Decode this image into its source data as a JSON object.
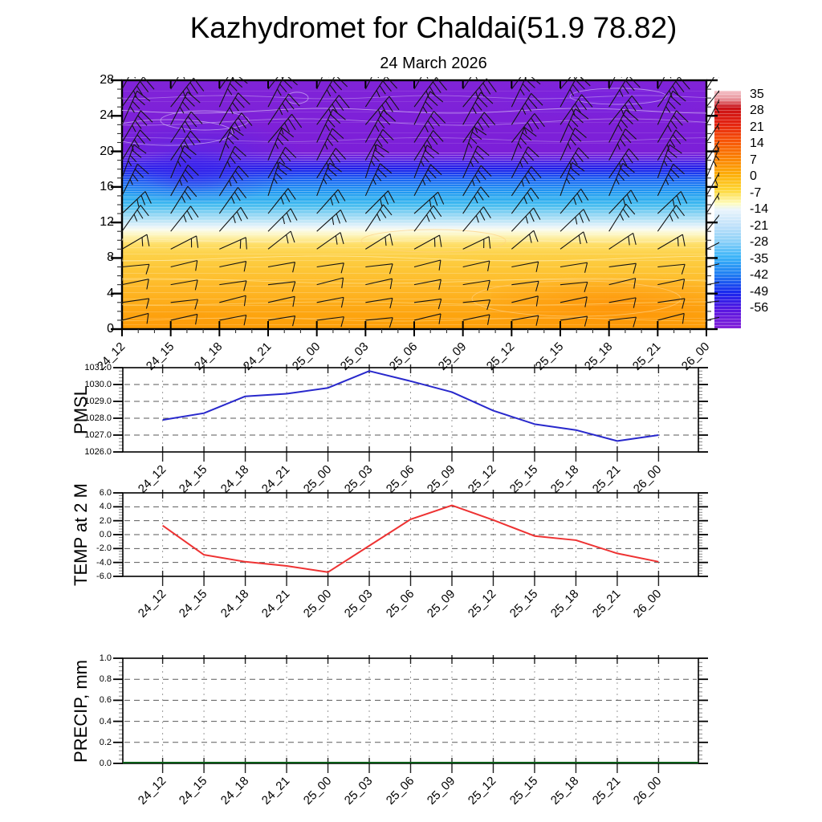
{
  "title": "Kazhydromet for Chaldai(51.9 78.82)",
  "subtitle": "24 March 2026",
  "time_labels": [
    "24_12",
    "24_15",
    "24_18",
    "24_21",
    "25_00",
    "25_03",
    "25_06",
    "25_09",
    "25_12",
    "25_15",
    "25_18",
    "25_21",
    "26_00"
  ],
  "colorbar": {
    "tick_labels": [
      "35",
      "28",
      "21",
      "14",
      "7",
      "0",
      "-7",
      "-14",
      "-21",
      "-28",
      "-35",
      "-42",
      "-49",
      "-56"
    ]
  },
  "cross_section": {
    "y_tick_labels": [
      "28",
      "24",
      "20",
      "16",
      "12",
      "8",
      "4",
      "0"
    ],
    "y_range_km": [
      0,
      28
    ],
    "overlay": "wind barbs at each 3 h time step, every 2 km height"
  },
  "pmsl": {
    "axis_label": "PMSL",
    "y_tick_labels": [
      "1031.0",
      "1030.0",
      "1029.0",
      "1028.0",
      "1027.0",
      "1026.0"
    ]
  },
  "temp": {
    "axis_label": "TEMP at 2 M",
    "y_tick_labels": [
      "6.0",
      "4.0",
      "2.0",
      "0.0",
      "-2.0",
      "-4.0",
      "-6.0"
    ]
  },
  "precip": {
    "axis_label": "PRECIP, mm",
    "y_tick_labels": [
      "1.0",
      "0.8",
      "0.6",
      "0.4",
      "0.2",
      "0.0"
    ]
  },
  "colors": {
    "pmsl_line": "#2828cc",
    "temp_line": "#ee3232",
    "precip_line": "#0b5e18",
    "grid_h": "#5a5a5a",
    "grid_v": "#9a9a9a",
    "cross_section_gradient": [
      [
        0.0,
        "#8023d8"
      ],
      [
        0.29,
        "#7c1fd8"
      ],
      [
        0.315,
        "#6325e2"
      ],
      [
        0.335,
        "#3c25e6"
      ],
      [
        0.355,
        "#1c1ce8"
      ],
      [
        0.375,
        "#1a3cee"
      ],
      [
        0.4,
        "#1c66f2"
      ],
      [
        0.435,
        "#1f8ef2"
      ],
      [
        0.47,
        "#27a8f0"
      ],
      [
        0.5,
        "#46bcf0"
      ],
      [
        0.53,
        "#7fd0f2"
      ],
      [
        0.56,
        "#b5e2f6"
      ],
      [
        0.585,
        "#e2f2fa"
      ],
      [
        0.6,
        "#f8fbee"
      ],
      [
        0.615,
        "#fdf8cd"
      ],
      [
        0.635,
        "#fdeea0"
      ],
      [
        0.66,
        "#fede67"
      ],
      [
        0.7,
        "#fdd148"
      ],
      [
        0.76,
        "#fdc636"
      ],
      [
        0.84,
        "#feb726"
      ],
      [
        0.92,
        "#fda814"
      ],
      [
        1.0,
        "#fd9d06"
      ]
    ],
    "colorbar_gradient": [
      [
        0.0,
        "#f5c2c9"
      ],
      [
        0.035,
        "#e8959c"
      ],
      [
        0.07,
        "#c91016"
      ],
      [
        0.14,
        "#e42310"
      ],
      [
        0.21,
        "#f75408"
      ],
      [
        0.285,
        "#fb8304"
      ],
      [
        0.355,
        "#fdb009"
      ],
      [
        0.42,
        "#fed839"
      ],
      [
        0.475,
        "#fefcc0"
      ],
      [
        0.5,
        "#eaf5fc"
      ],
      [
        0.565,
        "#c2e2fa"
      ],
      [
        0.63,
        "#90d2f8"
      ],
      [
        0.7,
        "#3ab4f8"
      ],
      [
        0.775,
        "#1e7cf2"
      ],
      [
        0.85,
        "#1826ee"
      ],
      [
        0.925,
        "#5a16e0"
      ],
      [
        1.0,
        "#8523d8"
      ]
    ]
  },
  "chart_data": [
    {
      "type": "heatmap",
      "name": "temperature vertical cross-section with wind barbs",
      "x": [
        "24_12",
        "24_15",
        "24_18",
        "24_21",
        "25_00",
        "25_03",
        "25_06",
        "25_09",
        "25_12",
        "25_15",
        "25_18",
        "25_21",
        "26_00"
      ],
      "ylim": [
        0,
        28
      ],
      "yticks": [
        0,
        4,
        8,
        12,
        16,
        20,
        24,
        28
      ],
      "colorbar_values": [
        35,
        28,
        21,
        14,
        7,
        0,
        -7,
        -14,
        -21,
        -28,
        -35,
        -42,
        -49,
        -56
      ],
      "field_bands": [
        {
          "height_km": [
            19,
            28
          ],
          "approx_value": "-56 and colder",
          "color_name": "purple"
        },
        {
          "height_km": [
            16.5,
            19
          ],
          "approx_value": "-49 to -56",
          "color_name": "dark blue"
        },
        {
          "height_km": [
            12.8,
            16.5
          ],
          "approx_value": "-28 to -49",
          "color_name": "cyan"
        },
        {
          "height_km": [
            10.5,
            12.8
          ],
          "approx_value": "-14 to -28",
          "color_name": "pale blue / white"
        },
        {
          "height_km": [
            6,
            10.5
          ],
          "approx_value": "-7 to -14",
          "color_name": "yellow"
        },
        {
          "height_km": [
            0,
            6
          ],
          "approx_value": "0 to -7",
          "color_name": "orange"
        }
      ],
      "overlay": "wind barbs every 3 h in 13 columns, every 2 km in height"
    },
    {
      "type": "line",
      "name": "PMSL",
      "x": [
        "24_12",
        "24_15",
        "24_18",
        "24_21",
        "25_00",
        "25_03",
        "25_06",
        "25_09",
        "25_12",
        "25_15",
        "25_18",
        "25_21",
        "26_00"
      ],
      "values": [
        1027.9,
        1028.3,
        1029.3,
        1029.45,
        1029.8,
        1030.8,
        1030.2,
        1029.55,
        1028.45,
        1027.65,
        1027.3,
        1026.65,
        1027.0
      ],
      "ylim": [
        1026.0,
        1031.0
      ],
      "line_color": "#2828cc"
    },
    {
      "type": "line",
      "name": "TEMP at 2 M",
      "x": [
        "24_12",
        "24_15",
        "24_18",
        "24_21",
        "25_00",
        "25_03",
        "25_06",
        "25_09",
        "25_12",
        "25_15",
        "25_18",
        "25_21",
        "26_00"
      ],
      "values": [
        1.3,
        -2.9,
        -3.9,
        -4.5,
        -5.4,
        -1.6,
        2.2,
        4.2,
        2.1,
        -0.2,
        -0.8,
        -2.7,
        -3.9
      ],
      "ylim": [
        -6.0,
        6.0
      ],
      "line_color": "#ee3232"
    },
    {
      "type": "line",
      "name": "PRECIP, mm",
      "x": [
        "24_12",
        "24_15",
        "24_18",
        "24_21",
        "25_00",
        "25_03",
        "25_06",
        "25_09",
        "25_12",
        "25_15",
        "25_18",
        "25_21",
        "26_00"
      ],
      "values": [
        0,
        0,
        0,
        0,
        0,
        0,
        0,
        0,
        0,
        0,
        0,
        0,
        0
      ],
      "ylim": [
        0.0,
        1.0
      ],
      "line_color": "#0b5e18"
    }
  ]
}
